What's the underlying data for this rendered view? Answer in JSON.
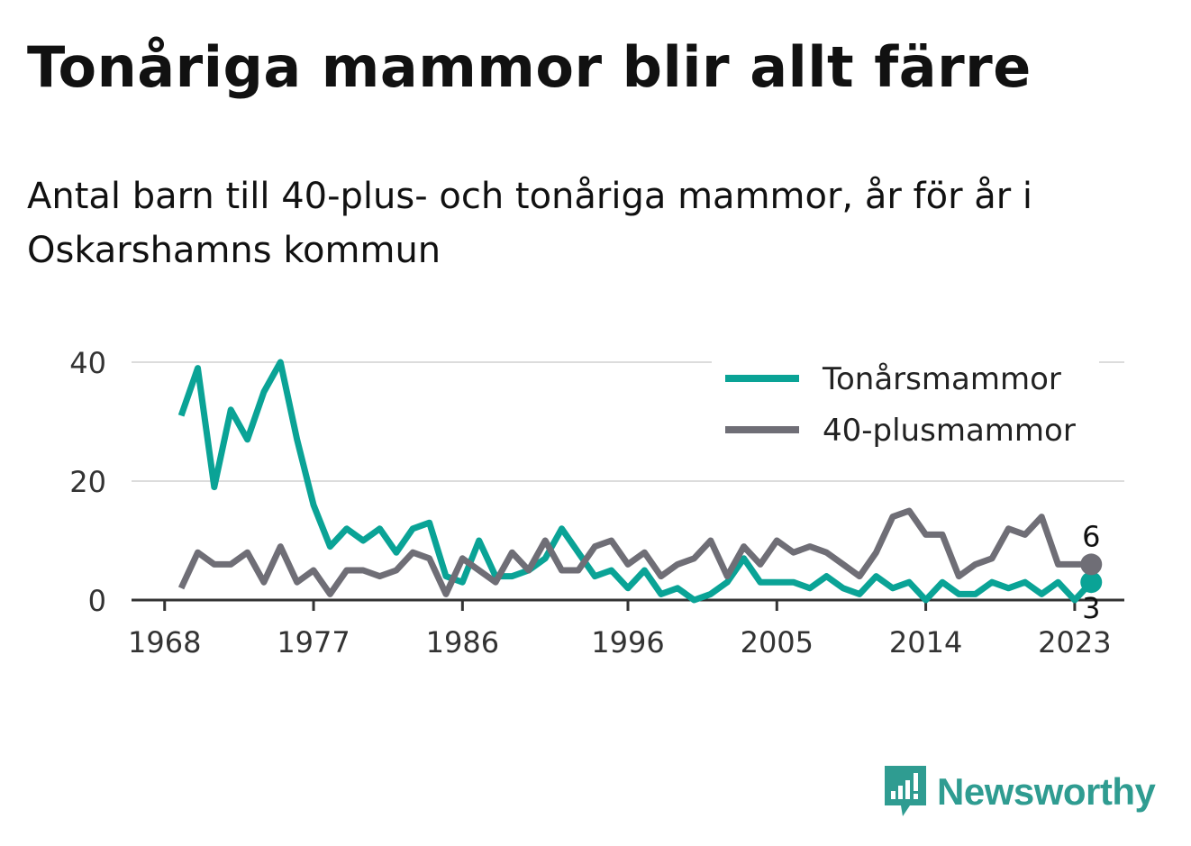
{
  "title": "Tonåriga mammor blir allt färre",
  "subtitle": "Antal barn till 40-plus- och tonåriga mammor, år för år i Oskarshamns kommun",
  "brand": {
    "name": "Newsworthy",
    "icon": "newsworthy-logo-icon",
    "color": "#2f9c91"
  },
  "chart_data": {
    "type": "line",
    "title": "Tonåriga mammor blir allt färre",
    "subtitle": "Antal barn till 40-plus- och tonåriga mammor, år för år i Oskarshamns kommun",
    "xlabel": "",
    "ylabel": "",
    "xlim": [
      1966,
      2026
    ],
    "ylim": [
      0,
      40
    ],
    "x_ticks": [
      1968,
      1977,
      1986,
      1996,
      2005,
      2014,
      2023
    ],
    "y_ticks": [
      0,
      20,
      40
    ],
    "grid": true,
    "legend": "top-right",
    "x": [
      1969,
      1970,
      1971,
      1972,
      1973,
      1974,
      1975,
      1976,
      1977,
      1978,
      1979,
      1980,
      1981,
      1982,
      1983,
      1984,
      1985,
      1986,
      1987,
      1988,
      1989,
      1990,
      1991,
      1992,
      1993,
      1994,
      1995,
      1996,
      1997,
      1998,
      1999,
      2000,
      2001,
      2002,
      2003,
      2004,
      2005,
      2006,
      2007,
      2008,
      2009,
      2010,
      2011,
      2012,
      2013,
      2014,
      2015,
      2016,
      2017,
      2018,
      2019,
      2020,
      2021,
      2022,
      2023,
      2024
    ],
    "series": [
      {
        "name": "Tonårsmammor",
        "color": "#0aa396",
        "values": [
          31,
          39,
          19,
          32,
          27,
          35,
          40,
          27,
          16,
          9,
          12,
          10,
          12,
          8,
          12,
          13,
          4,
          3,
          10,
          4,
          4,
          5,
          7,
          12,
          8,
          4,
          5,
          2,
          5,
          1,
          2,
          0,
          1,
          3,
          7,
          3,
          3,
          3,
          2,
          4,
          2,
          1,
          4,
          2,
          3,
          0,
          3,
          1,
          1,
          3,
          2,
          3,
          1,
          3,
          0,
          3
        ],
        "end_label": "3"
      },
      {
        "name": "40-plusmammor",
        "color": "#6f6e76",
        "values": [
          2,
          8,
          6,
          6,
          8,
          3,
          9,
          3,
          5,
          1,
          5,
          5,
          4,
          5,
          8,
          7,
          1,
          7,
          5,
          3,
          8,
          5,
          10,
          5,
          5,
          9,
          10,
          6,
          8,
          4,
          6,
          7,
          10,
          4,
          9,
          6,
          10,
          8,
          9,
          8,
          6,
          4,
          8,
          14,
          15,
          11,
          11,
          4,
          6,
          7,
          12,
          11,
          14,
          6,
          6,
          6
        ],
        "end_label": "6"
      }
    ]
  }
}
